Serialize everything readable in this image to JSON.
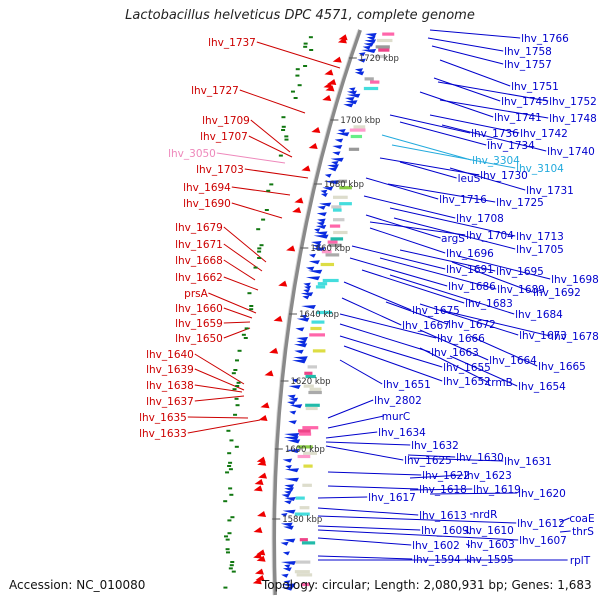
{
  "title": "Lactobacillus helveticus DPC 4571, complete genome",
  "footer": {
    "accession": "Accession: NC_010080",
    "topology": "Topology: circular; Length: 2,080,931 bp; Genes: 1,683"
  },
  "colors": {
    "left_label": "#cc0000",
    "left_label_pseudo": "#ee88bb",
    "right_label": "#0000cc",
    "right_label_rna": "#22aadd",
    "minus_strand_arrow": "#0a2be0",
    "plus_strand_arrow": "#ee0000",
    "backbone": "#888888",
    "tick_marks": "#117711"
  },
  "scale_labels": [
    "1720 kbp",
    "1700 kbp",
    "1680 kbp",
    "1660 kbp",
    "1640 kbp",
    "1620 kbp",
    "1600 kbp",
    "1580 kbp"
  ],
  "left_labels": [
    {
      "text": "lhv_1737"
    },
    {
      "text": "lhv_1727"
    },
    {
      "text": "lhv_1709"
    },
    {
      "text": "lhv_1707"
    },
    {
      "text": "lhv_3050",
      "pseudo": true
    },
    {
      "text": "lhv_1703"
    },
    {
      "text": "lhv_1694"
    },
    {
      "text": "lhv_1690"
    },
    {
      "text": "lhv_1679"
    },
    {
      "text": "lhv_1671"
    },
    {
      "text": "lhv_1668"
    },
    {
      "text": "lhv_1662"
    },
    {
      "text": "prsA"
    },
    {
      "text": "lhv_1660"
    },
    {
      "text": "lhv_1659"
    },
    {
      "text": "lhv_1650"
    },
    {
      "text": "lhv_1640"
    },
    {
      "text": "lhv_1639"
    },
    {
      "text": "lhv_1638"
    },
    {
      "text": "lhv_1637"
    },
    {
      "text": "lhv_1635"
    },
    {
      "text": "lhv_1633"
    }
  ],
  "right_labels": [
    {
      "text": "lhv_1766"
    },
    {
      "text": "lhv_1758"
    },
    {
      "text": "lhv_1757"
    },
    {
      "text": "lhv_1751"
    },
    {
      "text": "lhv_1745"
    },
    {
      "text": "lhv_1752"
    },
    {
      "text": "lhv_1741"
    },
    {
      "text": "lhv_1748"
    },
    {
      "text": "lhv_1736"
    },
    {
      "text": "lhv_1742"
    },
    {
      "text": "lhv_1734"
    },
    {
      "text": "lhv_1740"
    },
    {
      "text": "lhv_3304",
      "rna": true
    },
    {
      "text": "lhv_3104",
      "rna": true
    },
    {
      "text": "lhv_1730"
    },
    {
      "text": "leuS"
    },
    {
      "text": "lhv_1731"
    },
    {
      "text": "lhv_1716"
    },
    {
      "text": "lhv_1725"
    },
    {
      "text": "lhv_1708"
    },
    {
      "text": "argS"
    },
    {
      "text": "lhv_1704"
    },
    {
      "text": "lhv_1713"
    },
    {
      "text": "lhv_1696"
    },
    {
      "text": "lhv_1705"
    },
    {
      "text": "lhv_1691"
    },
    {
      "text": "lhv_1695"
    },
    {
      "text": "lhv_1698"
    },
    {
      "text": "lhv_1686"
    },
    {
      "text": "lhv_1689"
    },
    {
      "text": "lhv_1692"
    },
    {
      "text": "lhv_1683"
    },
    {
      "text": "lhv_1675"
    },
    {
      "text": "lhv_1684"
    },
    {
      "text": "lhv_1667"
    },
    {
      "text": "lhv_1672"
    },
    {
      "text": "lhv_1673"
    },
    {
      "text": "lhv_1678"
    },
    {
      "text": "lhv_1666"
    },
    {
      "text": "lhv_1663"
    },
    {
      "text": "lhv_1664"
    },
    {
      "text": "lhv_1655"
    },
    {
      "text": "lhv_1665"
    },
    {
      "text": "lhv_1652"
    },
    {
      "text": "trmB"
    },
    {
      "text": "lhv_1651"
    },
    {
      "text": "lhv_1654"
    },
    {
      "text": "lhv_2802"
    },
    {
      "text": "murC"
    },
    {
      "text": "lhv_1634"
    },
    {
      "text": "lhv_1632"
    },
    {
      "text": "lhv_1625"
    },
    {
      "text": "lhv_1630"
    },
    {
      "text": "lhv_1631"
    },
    {
      "text": "lhv_1622"
    },
    {
      "text": "lhv_1623"
    },
    {
      "text": "lhv_1618"
    },
    {
      "text": "lhv_1619"
    },
    {
      "text": "lhv_1620"
    },
    {
      "text": "lhv_1617"
    },
    {
      "text": "lhv_1613"
    },
    {
      "text": "nrdR"
    },
    {
      "text": "lhv_1612"
    },
    {
      "text": "coaE"
    },
    {
      "text": "lhv_1609"
    },
    {
      "text": "lhv_1610"
    },
    {
      "text": "thrS"
    },
    {
      "text": "lhv_1607"
    },
    {
      "text": "lhv_1602"
    },
    {
      "text": "lhv_1603"
    },
    {
      "text": "lhv_1594"
    },
    {
      "text": "lhv_1595"
    },
    {
      "text": "rplT"
    }
  ]
}
